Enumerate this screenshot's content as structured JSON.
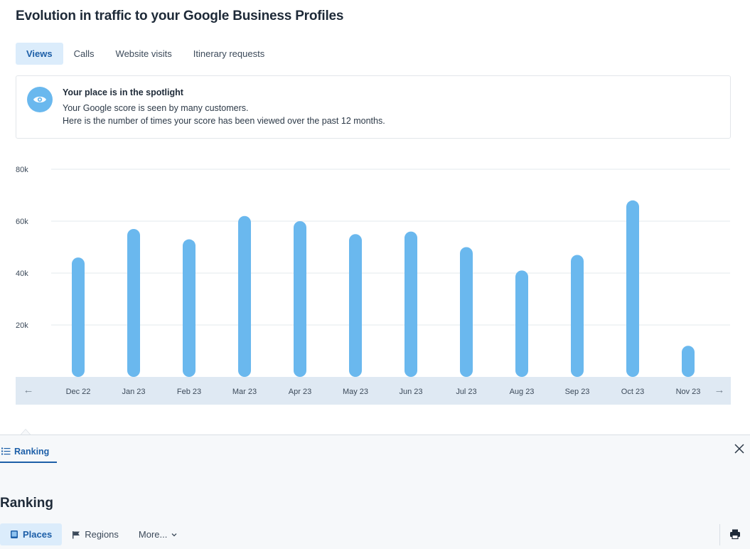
{
  "header": {
    "title": "Evolution in traffic to your Google Business Profiles"
  },
  "tabs": [
    {
      "label": "Views",
      "active": true
    },
    {
      "label": "Calls",
      "active": false
    },
    {
      "label": "Website visits",
      "active": false
    },
    {
      "label": "Itinerary requests",
      "active": false
    }
  ],
  "info_card": {
    "icon": "eye-icon",
    "title": "Your place is in the spotlight",
    "line1": "Your Google score is seen by many customers.",
    "line2": "Here is the number of times your score has been viewed over the past 12 months."
  },
  "chart_data": {
    "type": "bar",
    "categories": [
      "Dec 22",
      "Jan 23",
      "Feb 23",
      "Mar 23",
      "Apr 23",
      "May 23",
      "Jun 23",
      "Jul 23",
      "Aug 23",
      "Sep 23",
      "Oct 23",
      "Nov 23"
    ],
    "values": [
      46000,
      57000,
      53000,
      62000,
      60000,
      55000,
      56000,
      50000,
      41000,
      47000,
      68000,
      12000
    ],
    "ylim": [
      0,
      80000
    ],
    "yticks": [
      {
        "value": 20000,
        "label": "20k"
      },
      {
        "value": 40000,
        "label": "40k"
      },
      {
        "value": 60000,
        "label": "60k"
      },
      {
        "value": 80000,
        "label": "80k"
      }
    ],
    "bar_color": "#6ab8ee",
    "grid": true
  },
  "chart_nav": {
    "prev_icon": "arrow-left-icon",
    "next_icon": "arrow-right-icon",
    "prev_glyph": "←",
    "next_glyph": "→"
  },
  "bottom_panel": {
    "tab_label": "Ranking",
    "title": "Ranking",
    "sub_tabs": [
      {
        "label": "Places",
        "icon": "book-icon",
        "active": true
      },
      {
        "label": "Regions",
        "icon": "flag-icon",
        "active": false
      },
      {
        "label": "More...",
        "icon": "chevron-down-icon",
        "active": false
      }
    ]
  },
  "colors": {
    "accent": "#1d5fa8",
    "active_tab_bg": "#dbecfb",
    "bar": "#6ab8ee",
    "axis_band": "#dfe9f3"
  }
}
